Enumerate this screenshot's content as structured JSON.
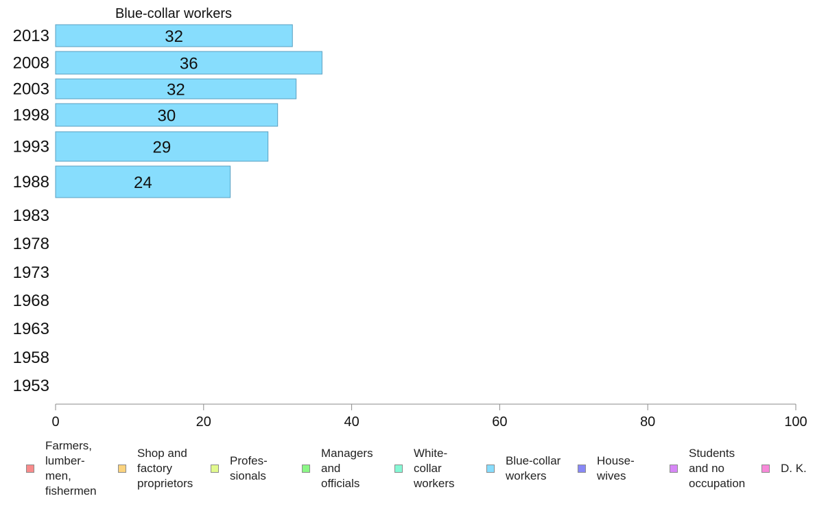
{
  "chart_data": {
    "type": "bar",
    "orientation": "horizontal",
    "title": "Blue-collar workers",
    "categories": [
      "2013",
      "2008",
      "2003",
      "1998",
      "1993",
      "1988",
      "1983",
      "1978",
      "1973",
      "1968",
      "1963",
      "1958",
      "1953"
    ],
    "series": [
      {
        "name": "Blue-collar workers",
        "color": "#87DDFD",
        "values": [
          32,
          36,
          32.5,
          30,
          28.7,
          23.6,
          null,
          null,
          null,
          null,
          null,
          null,
          null
        ],
        "labels": [
          "32",
          "36",
          "32",
          "30",
          "29",
          "24",
          "",
          "",
          "",
          "",
          "",
          "",
          ""
        ]
      }
    ],
    "xlim": [
      0,
      100
    ],
    "xticks": [
      "0",
      "20",
      "40",
      "60",
      "80",
      "100"
    ],
    "grid": false,
    "legend_placement": "bottom",
    "legend": [
      {
        "label": "Farmers,\nlumber-\nmen,\nfishermen",
        "color": "#F88B8B"
      },
      {
        "label": "Shop and\nfactory\nproprietors",
        "color": "#FBD37E"
      },
      {
        "label": "Profes-\nsionals",
        "color": "#E2FA8E"
      },
      {
        "label": "Managers\nand\nofficials",
        "color": "#8BF786"
      },
      {
        "label": "White-\ncollar\nworkers",
        "color": "#86F8D5"
      },
      {
        "label": "Blue-collar\nworkers",
        "color": "#87DDFD"
      },
      {
        "label": "House-\nwives",
        "color": "#8888F6"
      },
      {
        "label": "Students\nand no\noccupation",
        "color": "#D787F7"
      },
      {
        "label": "D. K.",
        "color": "#F789D9"
      }
    ]
  }
}
